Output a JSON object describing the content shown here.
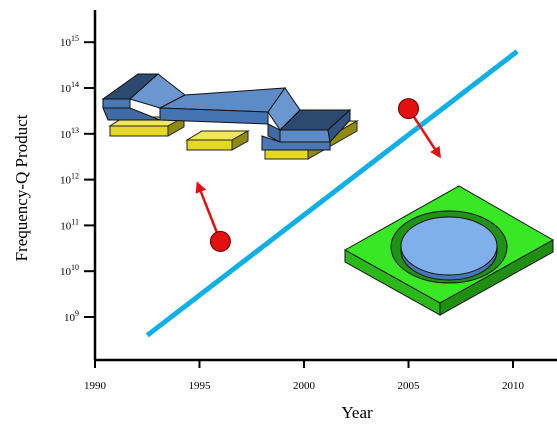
{
  "chart_data": {
    "type": "line",
    "xlabel": "Year",
    "ylabel": "Frequency-Q Product",
    "xlim": [
      1990,
      2012
    ],
    "y_scale": "log",
    "ylim_exp": [
      8.5,
      15.5
    ],
    "x_ticks": [
      {
        "value": 1990,
        "label": "1990"
      },
      {
        "value": 1995,
        "label": "1995"
      },
      {
        "value": 2000,
        "label": "2000"
      },
      {
        "value": 2005,
        "label": "2005"
      },
      {
        "value": 2010,
        "label": "2010"
      }
    ],
    "y_ticks": [
      {
        "exp": 9,
        "base": "10",
        "sup": "9"
      },
      {
        "exp": 10,
        "base": "10",
        "sup": "10"
      },
      {
        "exp": 11,
        "base": "10",
        "sup": "11"
      },
      {
        "exp": 12,
        "base": "10",
        "sup": "12"
      },
      {
        "exp": 13,
        "base": "10",
        "sup": "13"
      },
      {
        "exp": 14,
        "base": "10",
        "sup": "14"
      },
      {
        "exp": 15,
        "base": "10",
        "sup": "15"
      }
    ],
    "series": [
      {
        "x": [
          1992.5,
          2010.2
        ],
        "y_exp": [
          8.6,
          14.8
        ],
        "color": "#0fb0e8"
      }
    ],
    "annotations": [
      {
        "kind": "arrow-marker",
        "x": 1996,
        "y_exp": 10.65,
        "direction": "up-left",
        "color": "#e21010"
      },
      {
        "kind": "arrow-marker",
        "x": 2005,
        "y_exp": 13.55,
        "direction": "down-right",
        "color": "#e21010"
      }
    ],
    "grid": false,
    "legend": "none"
  },
  "illustrations": {
    "beam_resonator_icon": "clamped-beam-resonator",
    "disk_resonator_icon": "disk-resonator"
  }
}
